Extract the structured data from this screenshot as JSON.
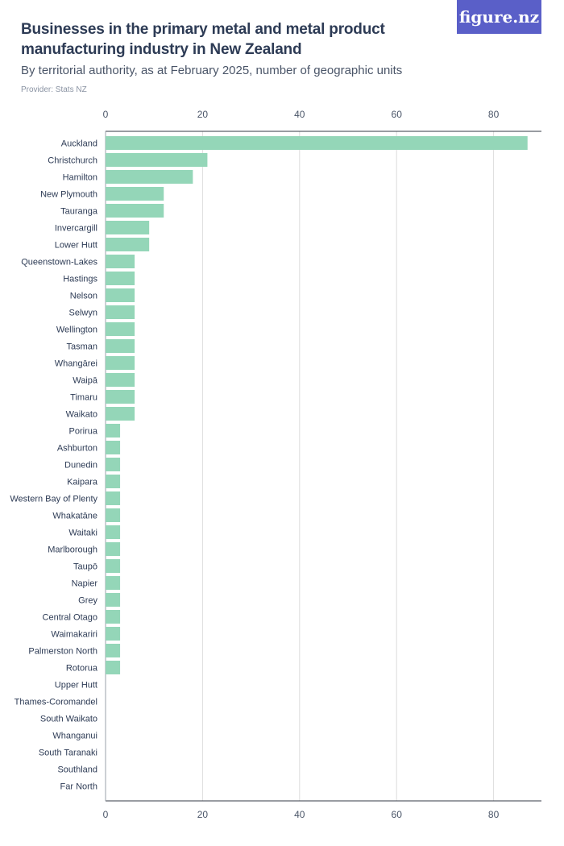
{
  "header": {
    "title": "Businesses in the primary metal and metal product manufacturing industry in New Zealand",
    "subtitle": "By territorial authority, as at February 2025, number of geographic units",
    "provider": "Provider: Stats NZ"
  },
  "logo": {
    "text": "figure.nz"
  },
  "colors": {
    "bar": "#94d6b8",
    "axis": "#333a45",
    "grid": "#dcdcdc",
    "accent": "#5a5fc8"
  },
  "chart_data": {
    "type": "bar",
    "orientation": "horizontal",
    "categories": [
      "Auckland",
      "Christchurch",
      "Hamilton",
      "New Plymouth",
      "Tauranga",
      "Invercargill",
      "Lower Hutt",
      "Queenstown-Lakes",
      "Hastings",
      "Nelson",
      "Selwyn",
      "Wellington",
      "Tasman",
      "Whangārei",
      "Waipā",
      "Timaru",
      "Waikato",
      "Porirua",
      "Ashburton",
      "Dunedin",
      "Kaipara",
      "Western Bay of Plenty",
      "Whakatāne",
      "Waitaki",
      "Marlborough",
      "Taupō",
      "Napier",
      "Grey",
      "Central Otago",
      "Waimakariri",
      "Palmerston North",
      "Rotorua",
      "Upper Hutt",
      "Thames-Coromandel",
      "South Waikato",
      "Whanganui",
      "South Taranaki",
      "Southland",
      "Far North"
    ],
    "values": [
      87,
      21,
      18,
      12,
      12,
      9,
      9,
      6,
      6,
      6,
      6,
      6,
      6,
      6,
      6,
      6,
      6,
      3,
      3,
      3,
      3,
      3,
      3,
      3,
      3,
      3,
      3,
      3,
      3,
      3,
      3,
      3,
      0,
      0,
      0,
      0,
      0,
      0,
      0
    ],
    "xlim": [
      0,
      90
    ],
    "xticks": [
      0,
      20,
      40,
      60,
      80
    ],
    "grid": true,
    "legend": "none"
  }
}
